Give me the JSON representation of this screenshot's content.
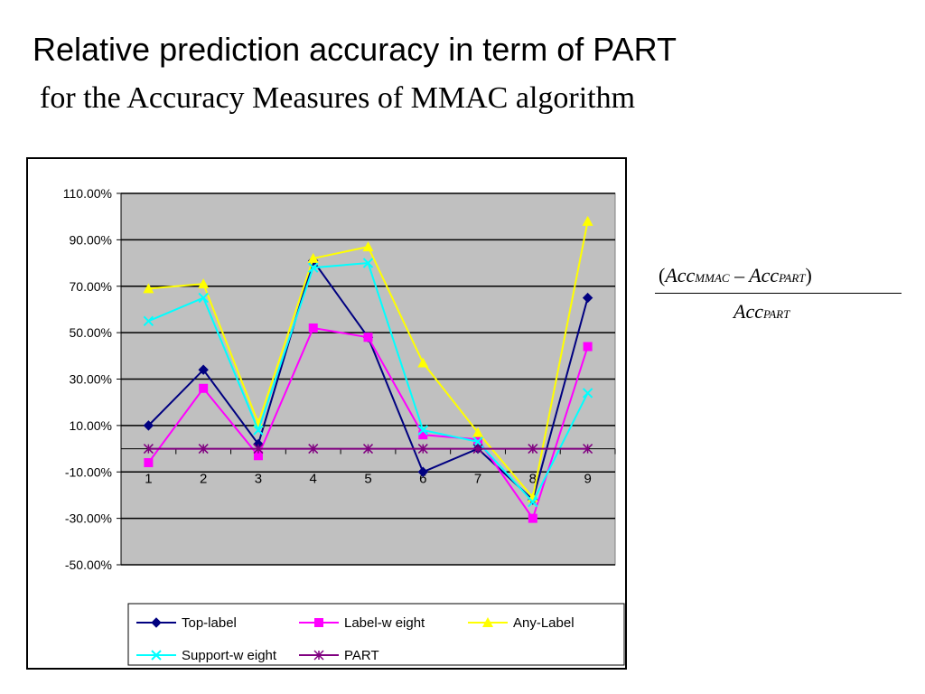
{
  "slide": {
    "title": "Relative prediction accuracy in term of PART",
    "subtitle": "for the Accuracy Measures of MMAC algorithm"
  },
  "formula": {
    "open_paren": "(",
    "acc1": "Acc",
    "sub1": "MMAC",
    "minus": "–",
    "acc2": "Acc",
    "sub2": "PART",
    "close_paren": ")",
    "acc3": "Acc",
    "sub3": "PART"
  },
  "chart_data": {
    "type": "line",
    "title": "",
    "xlabel": "",
    "ylabel": "",
    "categories": [
      "1",
      "2",
      "3",
      "4",
      "5",
      "6",
      "7",
      "8",
      "9"
    ],
    "ylim": [
      -50,
      110
    ],
    "y_ticks": [
      110,
      90,
      70,
      50,
      30,
      10,
      -10,
      -30,
      -50
    ],
    "y_tick_labels": [
      "110.00%",
      "90.00%",
      "70.00%",
      "50.00%",
      "30.00%",
      "10.00%",
      "-10.00%",
      "-30.00%",
      "-50.00%"
    ],
    "grid": true,
    "plot_background": "#c0c0c0",
    "legend_position": "bottom",
    "series": [
      {
        "name": "Top-label",
        "color": "#000080",
        "marker": "diamond",
        "values": [
          10,
          34,
          2,
          81,
          48,
          -10,
          0,
          -22,
          65
        ]
      },
      {
        "name": "Label-w eight",
        "color": "#ff00ff",
        "marker": "square",
        "values": [
          -6,
          26,
          -3,
          52,
          48,
          6,
          4,
          -30,
          44
        ]
      },
      {
        "name": "Any-Label",
        "color": "#ffff00",
        "marker": "triangle",
        "values": [
          69,
          71,
          11,
          82,
          87,
          37,
          7,
          -21,
          98
        ]
      },
      {
        "name": "Support-w eight",
        "color": "#00ffff",
        "marker": "x",
        "values": [
          55,
          65,
          8,
          78,
          80,
          8,
          3,
          -23,
          24
        ]
      },
      {
        "name": "PART",
        "color": "#800080",
        "marker": "star",
        "values": [
          0,
          0,
          0,
          0,
          0,
          0,
          0,
          0,
          0
        ]
      }
    ]
  }
}
